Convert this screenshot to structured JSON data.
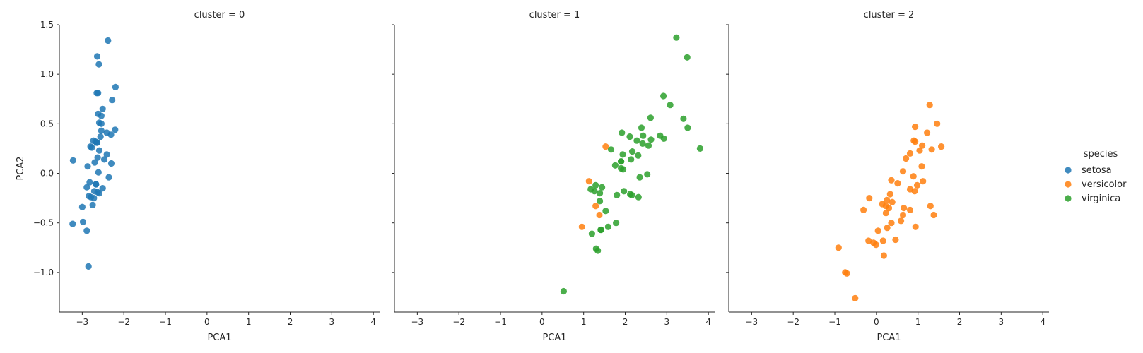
{
  "chart_data": {
    "type": "scatter",
    "xlabel": "PCA1",
    "ylabel": "PCA2",
    "xlim": [
      -3.55,
      4.15
    ],
    "ylim": [
      -1.4,
      1.5
    ],
    "xticks": [
      -3,
      -2,
      -1,
      0,
      1,
      2,
      3,
      4
    ],
    "yticks": [
      -1.0,
      -0.5,
      0.0,
      0.5,
      1.0,
      1.5
    ],
    "xtick_labels": [
      "−3",
      "−2",
      "−1",
      "0",
      "1",
      "2",
      "3",
      "4"
    ],
    "ytick_labels": [
      "−1.0",
      "−0.5",
      "0.0",
      "0.5",
      "1.0",
      "1.5"
    ],
    "grid": false,
    "legend": {
      "title": "species",
      "placement": "right",
      "entries": [
        {
          "name": "setosa",
          "color": "#1f77b4"
        },
        {
          "name": "versicolor",
          "color": "#ff7f0e"
        },
        {
          "name": "virginica",
          "color": "#2ca02c"
        }
      ]
    },
    "panels": [
      {
        "title": "cluster = 0",
        "series": [
          {
            "name": "setosa",
            "color": "#1f77b4",
            "points": [
              [
                -2.68,
                0.32
              ],
              [
                -2.71,
                -0.18
              ],
              [
                -2.89,
                -0.14
              ],
              [
                -2.75,
                -0.32
              ],
              [
                -2.73,
                0.33
              ],
              [
                -2.28,
                0.74
              ],
              [
                -2.82,
                -0.09
              ],
              [
                -2.63,
                0.16
              ],
              [
                -2.89,
                -0.58
              ],
              [
                -2.67,
                -0.11
              ],
              [
                -2.51,
                0.65
              ],
              [
                -2.61,
                0.01
              ],
              [
                -2.79,
                -0.24
              ],
              [
                -3.23,
                -0.51
              ],
              [
                -2.64,
                1.18
              ],
              [
                -2.38,
                1.34
              ],
              [
                -2.62,
                0.81
              ],
              [
                -2.65,
                0.31
              ],
              [
                -2.2,
                0.87
              ],
              [
                -2.59,
                0.51
              ],
              [
                -2.31,
                0.39
              ],
              [
                -2.54,
                0.43
              ],
              [
                -3.22,
                0.13
              ],
              [
                -2.3,
                0.1
              ],
              [
                -2.36,
                -0.04
              ],
              [
                -2.51,
                -0.15
              ],
              [
                -2.47,
                0.14
              ],
              [
                -2.56,
                0.37
              ],
              [
                -2.64,
                0.31
              ],
              [
                -2.63,
                -0.19
              ],
              [
                -2.59,
                -0.2
              ],
              [
                -2.41,
                0.41
              ],
              [
                -2.65,
                0.81
              ],
              [
                -2.6,
                1.1
              ],
              [
                -2.67,
                -0.11
              ],
              [
                -2.87,
                0.07
              ],
              [
                -2.62,
                0.6
              ],
              [
                -2.8,
                0.27
              ],
              [
                -2.98,
                -0.49
              ],
              [
                -2.59,
                0.23
              ],
              [
                -2.77,
                0.26
              ],
              [
                -2.85,
                -0.94
              ],
              [
                -3.0,
                -0.34
              ],
              [
                -2.41,
                0.19
              ],
              [
                -2.21,
                0.44
              ],
              [
                -2.72,
                -0.25
              ],
              [
                -2.54,
                0.5
              ],
              [
                -2.84,
                -0.23
              ],
              [
                -2.54,
                0.58
              ],
              [
                -2.7,
                0.11
              ]
            ]
          }
        ]
      },
      {
        "title": "cluster = 1",
        "series": [
          {
            "name": "versicolor",
            "color": "#ff7f0e",
            "points": [
              [
                1.53,
                0.27
              ],
              [
                1.13,
                -0.08
              ],
              [
                0.96,
                -0.54
              ],
              [
                1.29,
                -0.33
              ],
              [
                1.38,
                -0.42
              ]
            ]
          },
          {
            "name": "virginica",
            "color": "#2ca02c",
            "points": [
              [
                2.53,
                -0.01
              ],
              [
                1.41,
                -0.57
              ],
              [
                2.62,
                0.34
              ],
              [
                1.97,
                -0.18
              ],
              [
                2.35,
                -0.04
              ],
              [
                3.4,
                0.55
              ],
              [
                0.52,
                -1.19
              ],
              [
                2.93,
                0.35
              ],
              [
                2.32,
                -0.24
              ],
              [
                2.92,
                0.78
              ],
              [
                1.66,
                0.24
              ],
              [
                1.8,
                -0.22
              ],
              [
                2.17,
                0.22
              ],
              [
                1.34,
                -0.78
              ],
              [
                1.59,
                -0.54
              ],
              [
                1.9,
                0.12
              ],
              [
                1.95,
                0.04
              ],
              [
                3.49,
                1.17
              ],
              [
                3.8,
                0.25
              ],
              [
                1.3,
                -0.76
              ],
              [
                2.43,
                0.38
              ],
              [
                1.2,
                -0.61
              ],
              [
                3.5,
                0.46
              ],
              [
                1.39,
                -0.2
              ],
              [
                2.28,
                0.33
              ],
              [
                2.61,
                0.56
              ],
              [
                1.26,
                -0.18
              ],
              [
                1.29,
                -0.12
              ],
              [
                2.12,
                -0.21
              ],
              [
                2.39,
                0.46
              ],
              [
                2.84,
                0.38
              ],
              [
                3.23,
                1.37
              ],
              [
                2.16,
                -0.22
              ],
              [
                1.44,
                -0.14
              ],
              [
                1.78,
                -0.5
              ],
              [
                3.08,
                0.69
              ],
              [
                2.14,
                0.14
              ],
              [
                1.9,
                0.05
              ],
              [
                1.17,
                -0.16
              ],
              [
                2.11,
                0.37
              ],
              [
                2.31,
                0.18
              ],
              [
                1.92,
                0.41
              ],
              [
                1.42,
                -0.57
              ],
              [
                2.56,
                0.28
              ],
              [
                2.42,
                0.3
              ],
              [
                1.94,
                0.19
              ],
              [
                1.53,
                -0.38
              ],
              [
                1.76,
                0.08
              ],
              [
                1.9,
                0.12
              ],
              [
                1.39,
                -0.28
              ]
            ]
          }
        ]
      },
      {
        "title": "cluster = 2",
        "series": [
          {
            "name": "versicolor",
            "color": "#ff7f0e",
            "points": [
              [
                1.28,
                0.69
              ],
              [
                0.93,
                0.32
              ],
              [
                1.46,
                0.5
              ],
              [
                0.18,
                -0.83
              ],
              [
                1.09,
                0.07
              ],
              [
                0.64,
                -0.42
              ],
              [
                1.1,
                0.28
              ],
              [
                -0.75,
                -1.0
              ],
              [
                1.04,
                0.23
              ],
              [
                -0.01,
                -0.72
              ],
              [
                -0.51,
                -1.26
              ],
              [
                0.51,
                -0.1
              ],
              [
                0.26,
                -0.55
              ],
              [
                0.98,
                -0.12
              ],
              [
                -0.17,
                -0.25
              ],
              [
                0.93,
                0.47
              ],
              [
                0.66,
                -0.35
              ],
              [
                0.23,
                -0.33
              ],
              [
                0.94,
                -0.54
              ],
              [
                0.04,
                -0.58
              ],
              [
                1.12,
                -0.08
              ],
              [
                0.36,
                -0.07
              ],
              [
                1.3,
                -0.33
              ],
              [
                0.92,
                -0.18
              ],
              [
                0.71,
                0.15
              ],
              [
                0.9,
                0.33
              ],
              [
                1.33,
                0.24
              ],
              [
                1.56,
                0.27
              ],
              [
                0.81,
                -0.16
              ],
              [
                -0.31,
                -0.37
              ],
              [
                -0.07,
                -0.7
              ],
              [
                -0.19,
                -0.68
              ],
              [
                0.14,
                -0.31
              ],
              [
                1.38,
                -0.42
              ],
              [
                0.59,
                -0.48
              ],
              [
                0.81,
                0.2
              ],
              [
                1.22,
                0.41
              ],
              [
                0.81,
                -0.37
              ],
              [
                0.25,
                -0.27
              ],
              [
                0.16,
                -0.68
              ],
              [
                0.46,
                -0.67
              ],
              [
                0.89,
                -0.03
              ],
              [
                0.23,
                -0.4
              ],
              [
                -0.71,
                -1.01
              ],
              [
                0.36,
                -0.5
              ],
              [
                0.33,
                -0.21
              ],
              [
                0.38,
                -0.29
              ],
              [
                0.64,
                0.02
              ],
              [
                -0.91,
                -0.75
              ],
              [
                0.3,
                -0.35
              ]
            ]
          }
        ]
      }
    ]
  }
}
